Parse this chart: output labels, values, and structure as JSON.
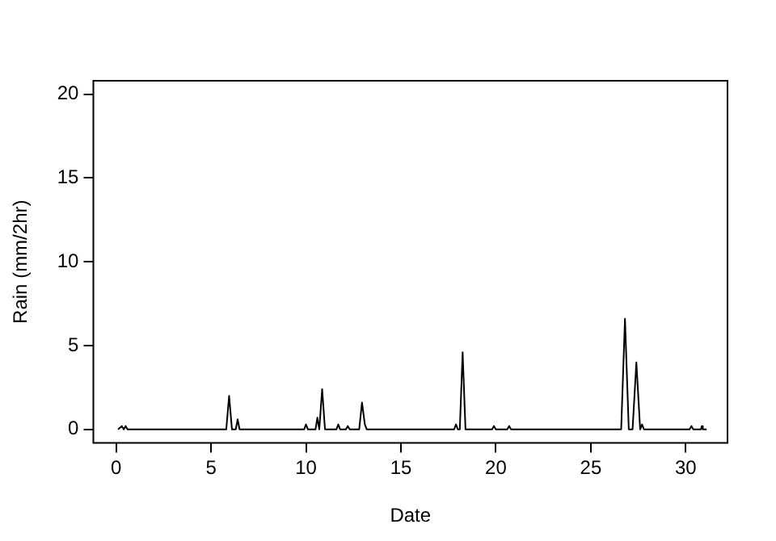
{
  "chart_data": {
    "type": "line",
    "xlabel": "Date",
    "ylabel": "Rain (mm/2hr)",
    "xlim": [
      -1.2,
      32.2
    ],
    "ylim": [
      -0.8,
      20.8
    ],
    "xticks": [
      0,
      5,
      10,
      15,
      20,
      25,
      30
    ],
    "yticks": [
      0,
      5,
      10,
      15,
      20
    ],
    "grid": false,
    "legend": false,
    "marker": "none",
    "series": [
      {
        "color": "#000000",
        "x": [
          0.1,
          0.3,
          0.4,
          0.5,
          0.6,
          5.8,
          5.95,
          6.1,
          6.3,
          6.4,
          6.5,
          9.9,
          10.0,
          10.1,
          10.5,
          10.6,
          10.7,
          10.85,
          11.0,
          11.6,
          11.7,
          11.8,
          12.1,
          12.2,
          12.3,
          12.8,
          12.95,
          13.1,
          13.2,
          17.8,
          17.9,
          18.0,
          18.1,
          18.25,
          18.4,
          19.8,
          19.9,
          20.0,
          20.6,
          20.7,
          20.8,
          26.6,
          26.8,
          27.0,
          27.2,
          27.4,
          27.6,
          27.7,
          27.8,
          30.2,
          30.3,
          30.4,
          30.8,
          30.85,
          30.9,
          31.1
        ],
        "values": [
          0,
          0.2,
          0,
          0.2,
          0,
          0,
          2.0,
          0,
          0,
          0.6,
          0,
          0,
          0.3,
          0,
          0,
          0.7,
          0,
          2.4,
          0,
          0,
          0.3,
          0,
          0,
          0.2,
          0,
          0,
          1.6,
          0.3,
          0,
          0,
          0.3,
          0,
          0,
          4.6,
          0,
          0,
          0.2,
          0,
          0,
          0.2,
          0,
          0,
          6.6,
          0,
          0,
          4.0,
          0,
          0.3,
          0,
          0,
          0.2,
          0,
          0,
          0.2,
          0,
          0
        ]
      }
    ]
  }
}
